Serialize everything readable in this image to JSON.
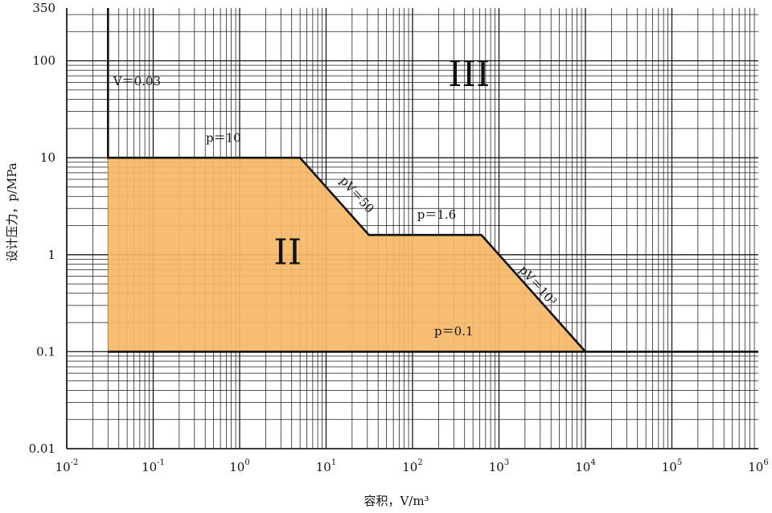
{
  "chart_data": {
    "type": "area",
    "x_scale": "log",
    "y_scale": "log",
    "xlim": [
      0.01,
      1000000
    ],
    "ylim": [
      0.01,
      350
    ],
    "grid": true,
    "xlabel": "容积，V/m³",
    "ylabel": "设计压力，p/MPa",
    "x_ticks": [
      {
        "base": "10",
        "exp": "-2"
      },
      {
        "base": "10",
        "exp": "-1"
      },
      {
        "base": "10",
        "exp": "0"
      },
      {
        "base": "10",
        "exp": "1"
      },
      {
        "base": "10",
        "exp": "2"
      },
      {
        "base": "10",
        "exp": "3"
      },
      {
        "base": "10",
        "exp": "4"
      },
      {
        "base": "10",
        "exp": "5"
      },
      {
        "base": "10",
        "exp": "6"
      }
    ],
    "x_tick_values": [
      0.01,
      0.1,
      1,
      10,
      100,
      1000,
      10000,
      100000,
      1000000
    ],
    "y_ticks": [
      {
        "label": "0.01",
        "value": 0.01
      },
      {
        "label": "0.1",
        "value": 0.1
      },
      {
        "label": "1",
        "value": 1
      },
      {
        "label": "10",
        "value": 10
      },
      {
        "label": "100",
        "value": 100
      },
      {
        "label": "350",
        "value": 350
      }
    ],
    "series": [
      {
        "region": "II",
        "fill": "#f6b868",
        "points": [
          [
            0.03,
            0.1
          ],
          [
            0.03,
            10
          ],
          [
            5,
            10
          ],
          [
            31.25,
            1.6
          ],
          [
            625,
            1.6
          ],
          [
            10000,
            0.1
          ]
        ]
      }
    ],
    "boundary_lines": [
      {
        "points": [
          [
            0.03,
            350
          ],
          [
            0.03,
            10
          ],
          [
            5,
            10
          ],
          [
            31.25,
            1.6
          ],
          [
            625,
            1.6
          ],
          [
            10000,
            0.1
          ]
        ]
      },
      {
        "points": [
          [
            0.03,
            0.1
          ],
          [
            1000000,
            0.1
          ]
        ]
      }
    ],
    "regions": [
      {
        "label": "II",
        "x": 3.6,
        "y": 0.8
      },
      {
        "label": "III",
        "x": 450,
        "y": 55
      }
    ],
    "annotations": [
      {
        "text": "V＝0.03",
        "x": 0.065,
        "y": 56,
        "angle": 0
      },
      {
        "text": "p＝10",
        "x": 0.65,
        "y": 14.5,
        "angle": 0
      },
      {
        "text": "pV＝50",
        "x": 21,
        "y": 3.9,
        "angle": 48
      },
      {
        "text": "p＝1.6",
        "x": 190,
        "y": 2.35,
        "angle": 0
      },
      {
        "text": "pV＝10³",
        "x": 2600,
        "y": 0.45,
        "angle": 48
      },
      {
        "text": "p＝0.1",
        "x": 300,
        "y": 0.148,
        "angle": 0
      }
    ],
    "colors": {
      "fill": "#f6b868",
      "line": "#111111",
      "grid": "#1a1a1a"
    }
  }
}
